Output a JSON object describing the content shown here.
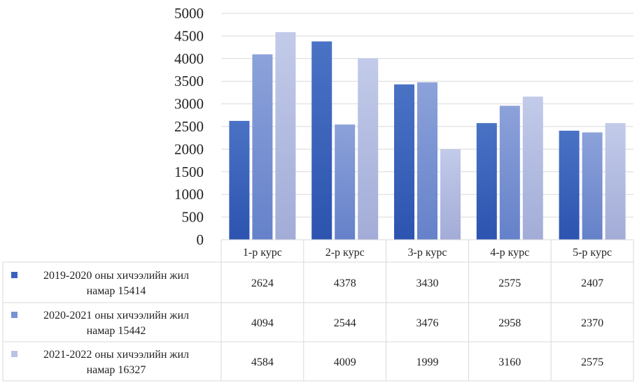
{
  "chart_data": {
    "type": "bar",
    "categories": [
      "1-р курс",
      "2-р курс",
      "3-р курс",
      "4-р курс",
      "5-р курс"
    ],
    "ylim": [
      0,
      5000
    ],
    "yticks": [
      0,
      500,
      1000,
      1500,
      2000,
      2500,
      3000,
      3500,
      4000,
      4500,
      5000
    ],
    "grid": true,
    "legend_placement": "data-table-left",
    "series": [
      {
        "name_line1": "2019-2020 оны хичээлийн жил",
        "name_line2": "намар 15414",
        "values": [
          2624,
          4378,
          3430,
          2575,
          2407
        ],
        "color_top": "#4a72c4",
        "color_bottom": "#2c54b0",
        "legend_color": "#3a62bd"
      },
      {
        "name_line1": "2020-2021 оны хичээлийн жил",
        "name_line2": "намар 15442",
        "values": [
          4094,
          2544,
          3476,
          2958,
          2370
        ],
        "color_top": "#8ca2da",
        "color_bottom": "#6581c9",
        "legend_color": "#7892d2"
      },
      {
        "name_line1": "2021-2022 оны хичээлийн жил",
        "name_line2": "намар 16327",
        "values": [
          4584,
          4009,
          1999,
          3160,
          2575
        ],
        "color_top": "#c2cbe9",
        "color_bottom": "#a2acd7",
        "legend_color": "#b9c3e5"
      }
    ]
  }
}
